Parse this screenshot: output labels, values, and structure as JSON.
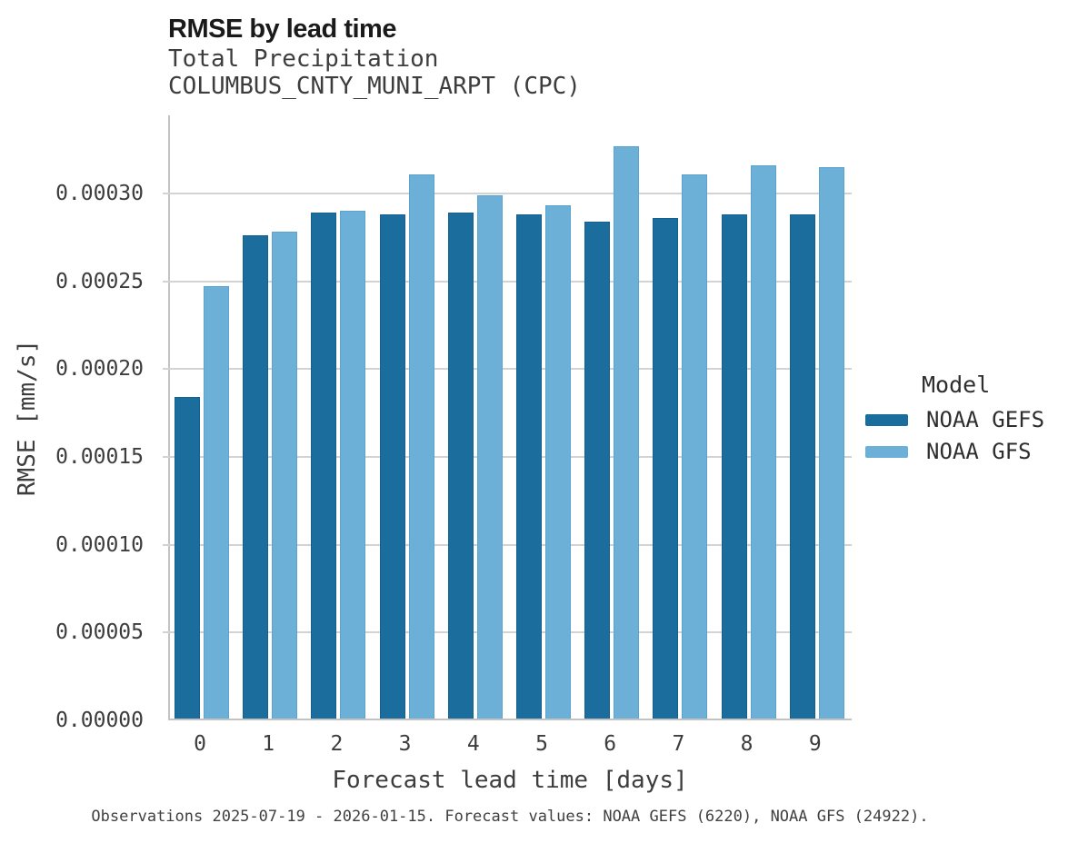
{
  "figure": {
    "title": "RMSE by lead time",
    "subtitle_lines": [
      "Total Precipitation",
      "COLUMBUS_CNTY_MUNI_ARPT (CPC)"
    ],
    "footer": "Observations 2025-07-19 - 2026-01-15. Forecast values: NOAA GEFS (6220), NOAA GFS (24922)."
  },
  "legend": {
    "title": "Model",
    "items": [
      {
        "label": "NOAA GEFS",
        "color": "#1b6d9d",
        "edge_color": "#15608c"
      },
      {
        "label": "NOAA GFS",
        "color": "#6cb0d8",
        "edge_color": "#5ba4cf"
      }
    ]
  },
  "chart_data": {
    "type": "bar",
    "title": "RMSE by lead time",
    "subtitle": "Total Precipitation / COLUMBUS_CNTY_MUNI_ARPT (CPC)",
    "xlabel": "Forecast lead time [days]",
    "ylabel": "RMSE [mm/s]",
    "categories": [
      "0",
      "1",
      "2",
      "3",
      "4",
      "5",
      "6",
      "7",
      "8",
      "9"
    ],
    "series": [
      {
        "name": "NOAA GEFS",
        "color": "#1b6d9d",
        "edge_color": "#15608c",
        "values": [
          0.000183,
          0.000275,
          0.000288,
          0.000287,
          0.000288,
          0.000287,
          0.000283,
          0.000285,
          0.000287,
          0.000287
        ]
      },
      {
        "name": "NOAA GFS",
        "color": "#6cb0d8",
        "edge_color": "#5ba4cf",
        "values": [
          0.000246,
          0.000277,
          0.000289,
          0.00031,
          0.000298,
          0.000292,
          0.000326,
          0.00031,
          0.000315,
          0.000314
        ]
      }
    ],
    "ylim": [
      0,
      0.000345
    ],
    "yticks": [
      0,
      5e-05,
      0.0001,
      0.00015,
      0.0002,
      0.00025,
      0.0003
    ],
    "ytick_labels": [
      "0.00000",
      "0.00005",
      "0.00010",
      "0.00015",
      "0.00020",
      "0.00025",
      "0.00030"
    ],
    "grid": true,
    "grid_color": "#d3d3d3",
    "legend_position": "right",
    "legend_title": "Model"
  }
}
